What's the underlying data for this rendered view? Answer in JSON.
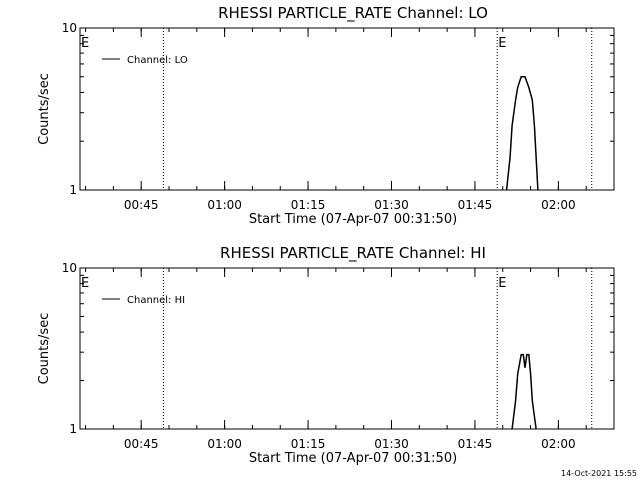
{
  "footer": {
    "timestamp": "14-Oct-2021 15:55"
  },
  "chart_data": [
    {
      "type": "line",
      "title": "RHESSI PARTICLE_RATE Channel: LO",
      "xlabel": "Start Time (07-Apr-07 00:31:50)",
      "ylabel": "Counts/sec",
      "xlim": [
        "00:34",
        "02:10"
      ],
      "ylim": [
        1,
        10
      ],
      "yscale": "log",
      "grid": false,
      "legend_position": "top-left",
      "x_ticks": [
        "00:45",
        "01:00",
        "01:15",
        "01:30",
        "01:45",
        "02:00"
      ],
      "y_ticks": [
        "1",
        "10"
      ],
      "event_lines": [
        {
          "t": "00:34",
          "label": "E",
          "style": "edge"
        },
        {
          "t": "00:49",
          "label": "",
          "style": "dotted"
        },
        {
          "t": "01:49",
          "label": "E",
          "style": "dotted"
        },
        {
          "t": "02:06",
          "label": "",
          "style": "dotted"
        }
      ],
      "series": [
        {
          "name": "Channel: LO",
          "points": [
            [
              "01:51",
              1
            ],
            [
              "01:51",
              1.6
            ],
            [
              "01:52",
              2.5
            ],
            [
              "01:52",
              3.6
            ],
            [
              "01:53",
              4.3
            ],
            [
              "01:53",
              5.0
            ],
            [
              "01:54",
              5.0
            ],
            [
              "01:55",
              4.3
            ],
            [
              "01:55",
              3.6
            ],
            [
              "01:56",
              2.5
            ],
            [
              "01:56",
              1.6
            ],
            [
              "01:56",
              1
            ]
          ]
        }
      ]
    },
    {
      "type": "line",
      "title": "RHESSI PARTICLE_RATE Channel: HI",
      "xlabel": "Start Time (07-Apr-07 00:31:50)",
      "ylabel": "Counts/sec",
      "xlim": [
        "00:34",
        "02:10"
      ],
      "ylim": [
        1,
        10
      ],
      "yscale": "log",
      "grid": false,
      "legend_position": "top-left",
      "x_ticks": [
        "00:45",
        "01:00",
        "01:15",
        "01:30",
        "01:45",
        "02:00"
      ],
      "y_ticks": [
        "1",
        "10"
      ],
      "event_lines": [
        {
          "t": "00:34",
          "label": "E",
          "style": "edge"
        },
        {
          "t": "00:49",
          "label": "",
          "style": "dotted"
        },
        {
          "t": "01:49",
          "label": "E",
          "style": "dotted"
        },
        {
          "t": "02:06",
          "label": "",
          "style": "dotted"
        }
      ],
      "series": [
        {
          "name": "Channel: HI",
          "points": [
            [
              "01:52",
              1
            ],
            [
              "01:52",
              1.5
            ],
            [
              "01:53",
              2.2
            ],
            [
              "01:53",
              2.9
            ],
            [
              "01:54",
              2.9
            ],
            [
              "01:54",
              2.4
            ],
            [
              "01:54",
              2.9
            ],
            [
              "01:55",
              2.9
            ],
            [
              "01:55",
              2.2
            ],
            [
              "01:55",
              1.5
            ],
            [
              "01:56",
              1
            ]
          ]
        }
      ]
    }
  ]
}
